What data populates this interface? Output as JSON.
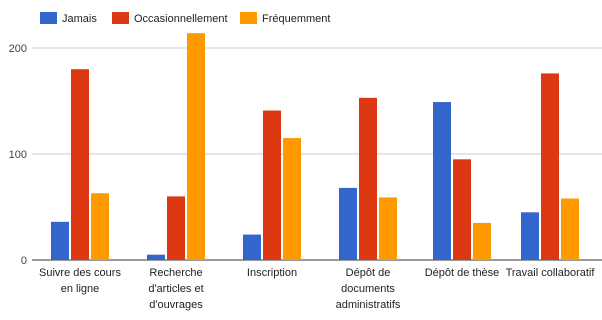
{
  "chart_data": {
    "type": "bar",
    "categories": [
      [
        "Suivre des cours",
        "en ligne"
      ],
      [
        "Recherche",
        "d'articles et",
        "d'ouvrages"
      ],
      [
        "Inscription"
      ],
      [
        "Dépôt de",
        "documents",
        "administratifs"
      ],
      [
        "Dépôt de thèse"
      ],
      [
        "Travail collaboratif"
      ]
    ],
    "series": [
      {
        "name": "Jamais",
        "color": "#3366cc",
        "values": [
          36,
          5,
          24,
          68,
          149,
          45
        ]
      },
      {
        "name": "Occasionnellement",
        "color": "#dc3912",
        "values": [
          180,
          60,
          141,
          153,
          95,
          176
        ]
      },
      {
        "name": "Fréquemment",
        "color": "#ff9900",
        "values": [
          63,
          214,
          115,
          59,
          35,
          58
        ]
      }
    ],
    "ylim": [
      0,
      215
    ],
    "yticks": [
      0,
      100,
      200
    ],
    "grid": true,
    "legend_position": "top-left"
  }
}
